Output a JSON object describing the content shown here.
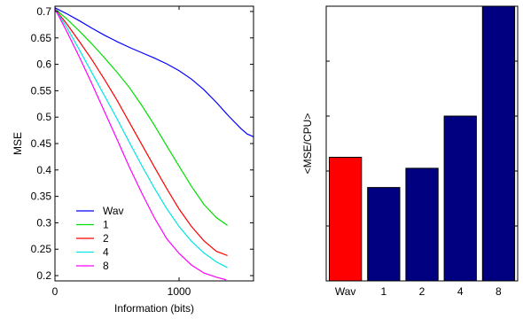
{
  "chart_data": [
    {
      "type": "line",
      "title": "",
      "xlabel": "Information (bits)",
      "ylabel": "MSE",
      "xlim": [
        0,
        1600
      ],
      "ylim": [
        0.19,
        0.71
      ],
      "xticks": [
        0,
        1000
      ],
      "yticks": [
        0.2,
        0.25,
        0.3,
        0.35,
        0.4,
        0.45,
        0.5,
        0.55,
        0.6,
        0.65,
        0.7
      ],
      "legend_position": "bottom-left",
      "grid": false,
      "series": [
        {
          "name": "Wav",
          "color": "#0000ff",
          "x": [
            0,
            100,
            200,
            300,
            400,
            500,
            600,
            700,
            800,
            900,
            1000,
            1100,
            1200,
            1300,
            1400,
            1500,
            1550,
            1600
          ],
          "y": [
            0.707,
            0.695,
            0.682,
            0.668,
            0.655,
            0.643,
            0.632,
            0.622,
            0.612,
            0.601,
            0.588,
            0.572,
            0.552,
            0.528,
            0.502,
            0.478,
            0.468,
            0.463
          ]
        },
        {
          "name": "1",
          "color": "#00dd00",
          "x": [
            0,
            100,
            200,
            300,
            400,
            500,
            600,
            700,
            800,
            900,
            1000,
            1100,
            1200,
            1300,
            1390
          ],
          "y": [
            0.705,
            0.685,
            0.662,
            0.638,
            0.612,
            0.585,
            0.556,
            0.522,
            0.485,
            0.446,
            0.407,
            0.369,
            0.335,
            0.31,
            0.295
          ]
        },
        {
          "name": "2",
          "color": "#ff0000",
          "x": [
            0,
            100,
            200,
            300,
            400,
            500,
            600,
            700,
            800,
            900,
            1000,
            1100,
            1200,
            1300,
            1390
          ],
          "y": [
            0.705,
            0.675,
            0.642,
            0.608,
            0.571,
            0.532,
            0.49,
            0.448,
            0.406,
            0.365,
            0.326,
            0.293,
            0.266,
            0.246,
            0.238
          ]
        },
        {
          "name": "4",
          "color": "#00e5e5",
          "x": [
            0,
            100,
            200,
            300,
            400,
            500,
            600,
            700,
            800,
            900,
            1000,
            1100,
            1200,
            1300,
            1390
          ],
          "y": [
            0.705,
            0.668,
            0.626,
            0.583,
            0.54,
            0.497,
            0.452,
            0.408,
            0.366,
            0.327,
            0.293,
            0.265,
            0.243,
            0.226,
            0.215
          ]
        },
        {
          "name": "8",
          "color": "#ff00ff",
          "x": [
            0,
            100,
            200,
            300,
            400,
            500,
            600,
            700,
            800,
            900,
            1000,
            1100,
            1200,
            1300,
            1380
          ],
          "y": [
            0.705,
            0.66,
            0.612,
            0.562,
            0.51,
            0.458,
            0.405,
            0.356,
            0.31,
            0.27,
            0.242,
            0.22,
            0.205,
            0.197,
            0.192
          ]
        }
      ]
    },
    {
      "type": "bar",
      "title": "",
      "xlabel": "",
      "ylabel": "<MSE/CPU>",
      "ylim": [
        0,
        1
      ],
      "yticks_unlabeled": [
        0.2,
        0.4,
        0.6,
        0.8
      ],
      "categories": [
        "Wav",
        "1",
        "2",
        "4",
        "8"
      ],
      "values": [
        0.45,
        0.34,
        0.41,
        0.6,
        1.0
      ],
      "colors": [
        "#ff0000",
        "#000080",
        "#000080",
        "#000080",
        "#000080"
      ]
    }
  ]
}
